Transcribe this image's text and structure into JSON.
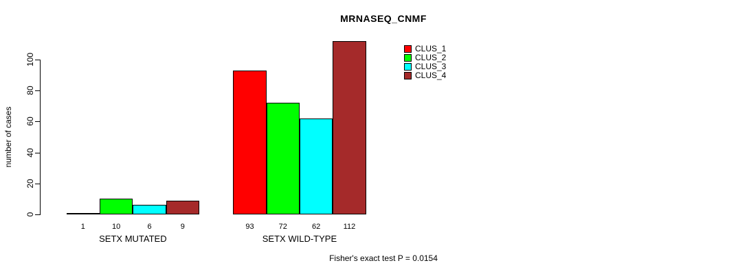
{
  "colors": {
    "background": "#FFFFFF",
    "text": "#000000",
    "bar_border": "#000000"
  },
  "chart_data": {
    "type": "bar",
    "title": "MRNASEQ_CNMF",
    "xlabel": "",
    "ylabel": "number of cases",
    "ylim": [
      0,
      100
    ],
    "yticks": [
      0,
      20,
      40,
      60,
      80,
      100
    ],
    "categories": [
      "SETX MUTATED",
      "SETX WILD-TYPE"
    ],
    "series": [
      {
        "name": "CLUS_1",
        "color": "#FF0000",
        "values": [
          1,
          93
        ]
      },
      {
        "name": "CLUS_2",
        "color": "#00FF00",
        "values": [
          10,
          72
        ]
      },
      {
        "name": "CLUS_3",
        "color": "#00FFFF",
        "values": [
          6,
          62
        ]
      },
      {
        "name": "CLUS_4",
        "color": "#A52A2A",
        "values": [
          9,
          112
        ]
      }
    ],
    "bar_value_labels": [
      [
        "1",
        "10",
        "6",
        "9"
      ],
      [
        "93",
        "72",
        "62",
        "112"
      ]
    ],
    "legend_position": "top-right",
    "legend_entries": [
      "CLUS_1",
      "CLUS_2",
      "CLUS_3",
      "CLUS_4"
    ],
    "grid": false,
    "annotation": "Fisher's exact test P = 0.0154"
  }
}
